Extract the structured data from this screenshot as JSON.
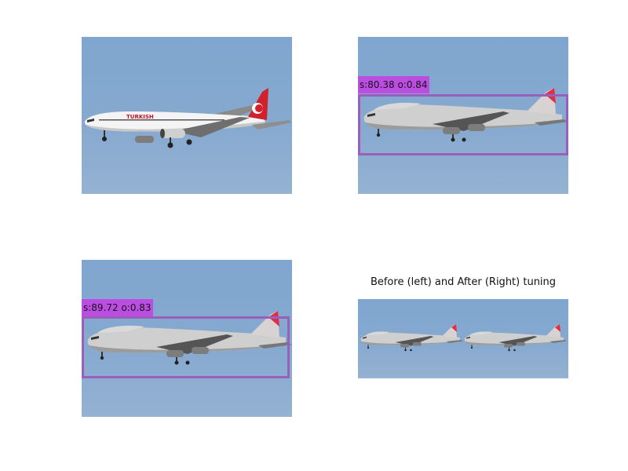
{
  "figure": {
    "caption": "Before (left) and After (Right) tuning",
    "colors": {
      "sky": "#86a9cf",
      "box": "#9a5fb8",
      "label_bg": "#bb4de0"
    }
  },
  "panels": [
    {
      "subject": "Turkish Airlines Boeing 737 landing",
      "livery_text": "TURKISH"
    },
    {
      "detection_label": "s:80.38 o:0.84"
    },
    {
      "detection_label": "s:89.72 o:0.83"
    },
    {
      "comparison": [
        "before",
        "after"
      ]
    }
  ]
}
